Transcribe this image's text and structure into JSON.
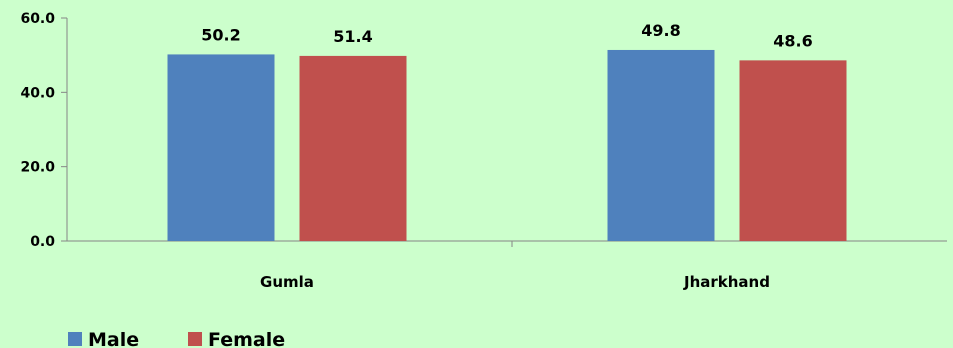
{
  "chart_data": {
    "type": "bar",
    "categories": [
      "Gumla",
      "Jharkhand"
    ],
    "series": [
      {
        "name": "Male",
        "values": [
          50.2,
          51.4
        ],
        "color": "#4f81bd"
      },
      {
        "name": "Female",
        "values": [
          49.8,
          48.6
        ],
        "color": "#c0504d"
      }
    ],
    "ylim": [
      0,
      60
    ],
    "yticks": [
      "0.0",
      "20.0",
      "40.0",
      "60.0"
    ],
    "data_labels": [
      "50.2",
      "51.4",
      "49.8",
      "48.6"
    ],
    "grid": false,
    "legend": "bottom-left"
  }
}
